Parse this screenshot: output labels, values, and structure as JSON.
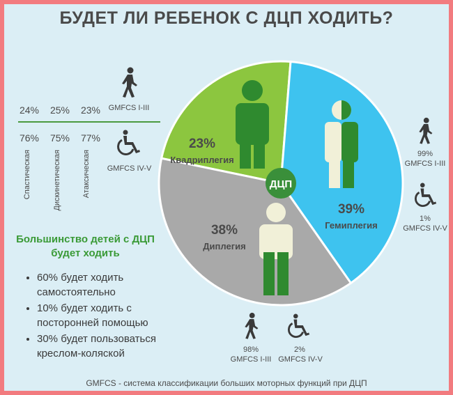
{
  "title": "БУДЕТ ЛИ РЕБЕНОК С ДЦП ХОДИТЬ?",
  "left_panel": {
    "walking_pcts": [
      "24%",
      "25%",
      "23%"
    ],
    "walking_label": "GMFCS I-III",
    "wheelchair_pcts": [
      "76%",
      "75%",
      "77%"
    ],
    "wheelchair_label": "GMFCS IV-V",
    "types": [
      "Спастическая",
      "Дискинетическая",
      "Атаксическая"
    ]
  },
  "subtitle": "Большинство детей с ДЦП будет ходить",
  "bullets": [
    "60% будет ходить самостоятельно",
    "10% будет ходить с посторонней помощью",
    "30% будет пользоваться креслом-коляской"
  ],
  "footer": "GMFCS - система классификации больших моторных функций при ДЦП",
  "chart_data": {
    "type": "pie",
    "center_label": "ДЦП",
    "slices": [
      {
        "label": "Квадриплегия",
        "value": 23,
        "value_label": "23%",
        "color": "#8cc63f"
      },
      {
        "label": "Гемиплегия",
        "value": 39,
        "value_label": "39%",
        "color": "#3ec3ef"
      },
      {
        "label": "Диплегия",
        "value": 38,
        "value_label": "38%",
        "color": "#a9a9a9"
      }
    ],
    "annotations": {
      "hemiplegia_walk": "99%",
      "hemiplegia_walk_label": "GMFCS I-III",
      "hemiplegia_chair": "1%",
      "hemiplegia_chair_label": "GMFCS IV-V",
      "diplegia_walk": "98%",
      "diplegia_walk_label": "GMFCS I-III",
      "diplegia_chair": "2%",
      "diplegia_chair_label": "GMFCS IV-V"
    }
  },
  "colors": {
    "frame": "#f27b7f",
    "background": "#dbeef5",
    "green": "#3a8f3a",
    "title": "#4a4a4a"
  }
}
